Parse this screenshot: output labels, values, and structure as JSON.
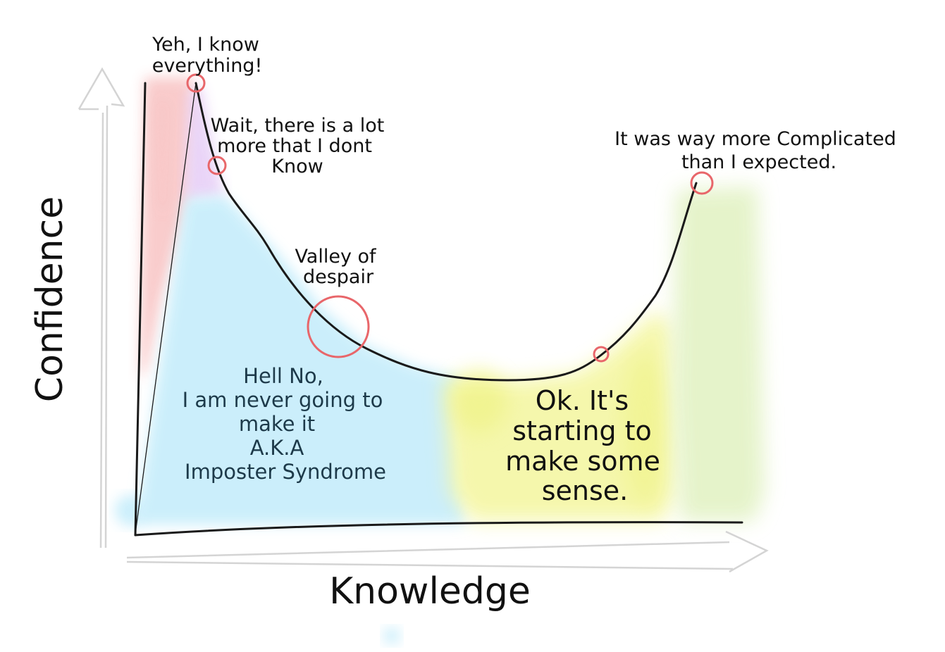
{
  "axes": {
    "x_label": "Knowledge",
    "y_label": "Confidence"
  },
  "annotations": {
    "peak": [
      "Yeh, I know",
      "everything!"
    ],
    "wait": [
      "Wait, there is a lot",
      "more that I dont",
      "Know"
    ],
    "valley": [
      "Valley of",
      "despair"
    ],
    "hell_no": [
      "Hell No,",
      "I am never going to",
      "make it",
      "A.K.A",
      "Imposter Syndrome"
    ],
    "ok": [
      "Ok. It's",
      "starting to",
      "make some",
      "sense."
    ],
    "complicated": [
      "It was way more Complicated",
      "than I expected."
    ]
  },
  "colors": {
    "curve": "#1a1a1a",
    "marker": "#e8666a",
    "zone_red": "#f7b7b7",
    "zone_purple": "#e3c8f5",
    "zone_blue": "#c9eefb",
    "zone_yellow": "#f5f7a8",
    "zone_green": "#e4f3c8",
    "guide_arrow": "#d4d4d4"
  }
}
